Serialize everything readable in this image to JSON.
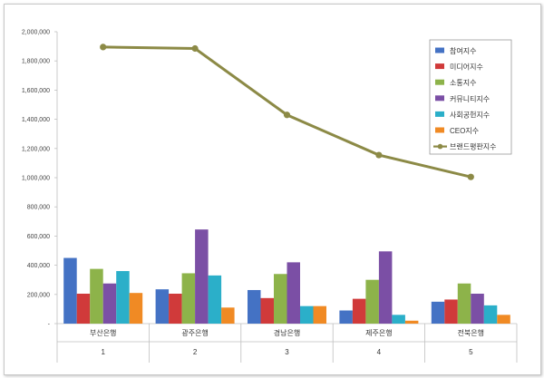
{
  "chart_data": {
    "type": "bar",
    "categories": [
      "부산은행",
      "광주은행",
      "경남은행",
      "제주은행",
      "전북은행"
    ],
    "category_index": [
      "1",
      "2",
      "3",
      "4",
      "5"
    ],
    "ylim": [
      0,
      2000000
    ],
    "yticks": [
      {
        "value": 0,
        "label": "-"
      },
      {
        "value": 200000,
        "label": "200,000"
      },
      {
        "value": 400000,
        "label": "400,000"
      },
      {
        "value": 600000,
        "label": "600,000"
      },
      {
        "value": 800000,
        "label": "800,000"
      },
      {
        "value": 1000000,
        "label": "1,000,000"
      },
      {
        "value": 1200000,
        "label": "1,200,000"
      },
      {
        "value": 1400000,
        "label": "1,400,000"
      },
      {
        "value": 1600000,
        "label": "1,600,000"
      },
      {
        "value": 1800000,
        "label": "1,800,000"
      },
      {
        "value": 2000000,
        "label": "2,000,000"
      }
    ],
    "grid": false,
    "legend_position": "top-right",
    "series": [
      {
        "name": "참여지수",
        "kind": "bar",
        "color": "#4472C4",
        "values": [
          450000,
          235000,
          230000,
          90000,
          150000
        ]
      },
      {
        "name": "미디어지수",
        "kind": "bar",
        "color": "#D03A3A",
        "values": [
          205000,
          205000,
          175000,
          170000,
          165000
        ]
      },
      {
        "name": "소통지수",
        "kind": "bar",
        "color": "#8DB34A",
        "values": [
          375000,
          345000,
          340000,
          300000,
          275000
        ]
      },
      {
        "name": "커뮤니티지수",
        "kind": "bar",
        "color": "#7B4FA5",
        "values": [
          275000,
          645000,
          420000,
          495000,
          205000
        ]
      },
      {
        "name": "사회공헌지수",
        "kind": "bar",
        "color": "#2BAFC9",
        "values": [
          360000,
          330000,
          120000,
          60000,
          125000
        ]
      },
      {
        "name": "CEO지수",
        "kind": "bar",
        "color": "#F08A24",
        "values": [
          210000,
          110000,
          120000,
          20000,
          60000
        ]
      },
      {
        "name": "브랜드평판지수",
        "kind": "line",
        "color": "#8C8A46",
        "values": [
          1895000,
          1885000,
          1430000,
          1155000,
          1005000
        ]
      }
    ]
  }
}
